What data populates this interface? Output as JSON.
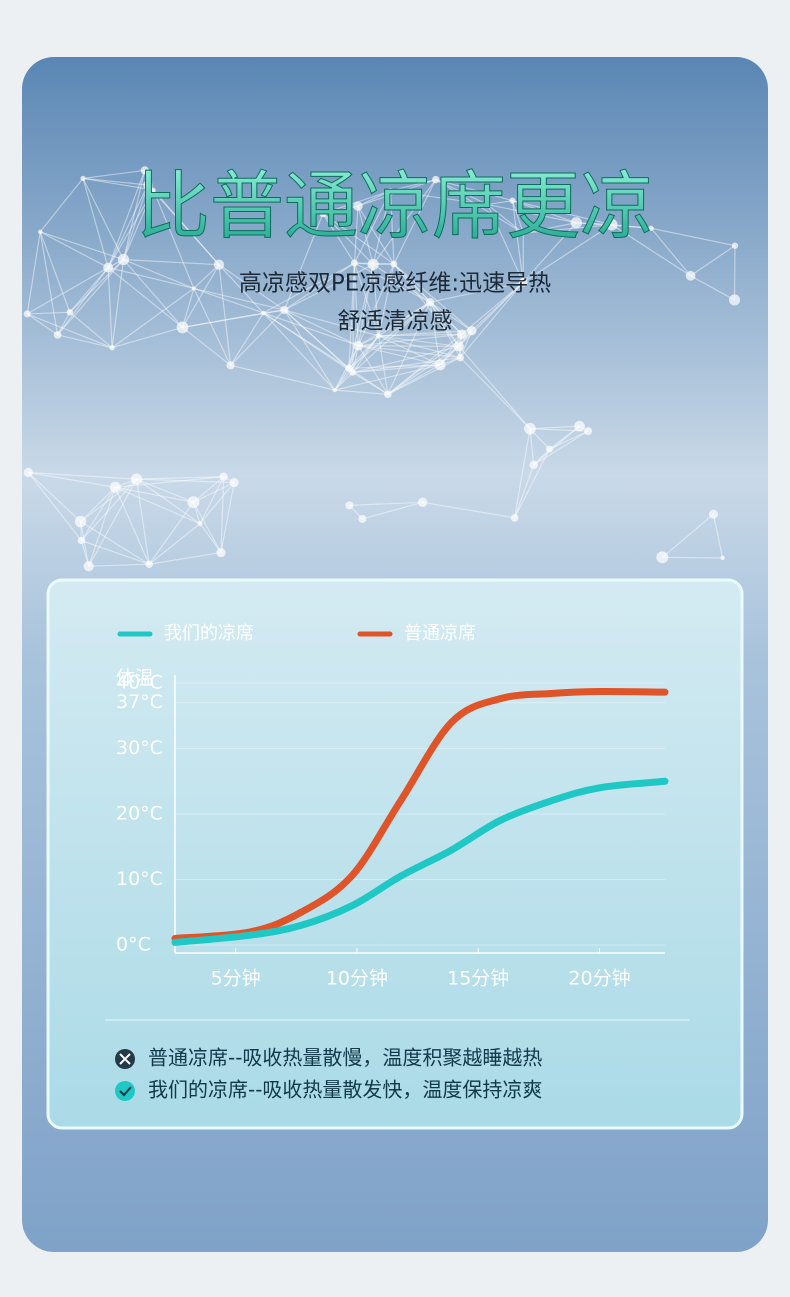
{
  "banner": {
    "title": "比普通凉席更凉",
    "lines": [
      "高凉感双PE凉感纤维:迅速导热",
      "舒适清凉感"
    ]
  },
  "chart_data": {
    "type": "line",
    "x": [
      2.5,
      5.6,
      7.7,
      9.8,
      11.8,
      13.9,
      15.9,
      18.0,
      20.0,
      22.7
    ],
    "xlim": [
      2.5,
      22.7
    ],
    "xticks": [
      {
        "value": 5,
        "label": "5分钟"
      },
      {
        "value": 10,
        "label": "10分钟"
      },
      {
        "value": 15,
        "label": "15分钟"
      },
      {
        "value": 20,
        "label": "20分钟"
      }
    ],
    "ylim": [
      0,
      40
    ],
    "yticks": [
      {
        "value": 0,
        "label": "0°C"
      },
      {
        "value": 10,
        "label": "10°C"
      },
      {
        "value": 20,
        "label": "20°C"
      },
      {
        "value": 30,
        "label": "30°C"
      },
      {
        "value": 37,
        "label": "37°C"
      },
      {
        "value": 40,
        "label": "40°C"
      }
    ],
    "body_temp_label": "体温",
    "series": [
      {
        "name": "我们的凉席",
        "color": "#1fc8c4",
        "values": [
          0.4,
          1.5,
          3,
          6,
          10.5,
          14.5,
          19,
          22,
          24,
          25
        ]
      },
      {
        "name": "普通凉席",
        "color": "#e0542a",
        "values": [
          1,
          2,
          5,
          10.6,
          22,
          34,
          37.6,
          38.4,
          38.7,
          38.6
        ]
      }
    ],
    "notes": [
      "普通凉席--吸收热量散慢，温度积聚越睡越热",
      "我们的凉席--吸收热量散发快，温度保持凉爽"
    ]
  }
}
